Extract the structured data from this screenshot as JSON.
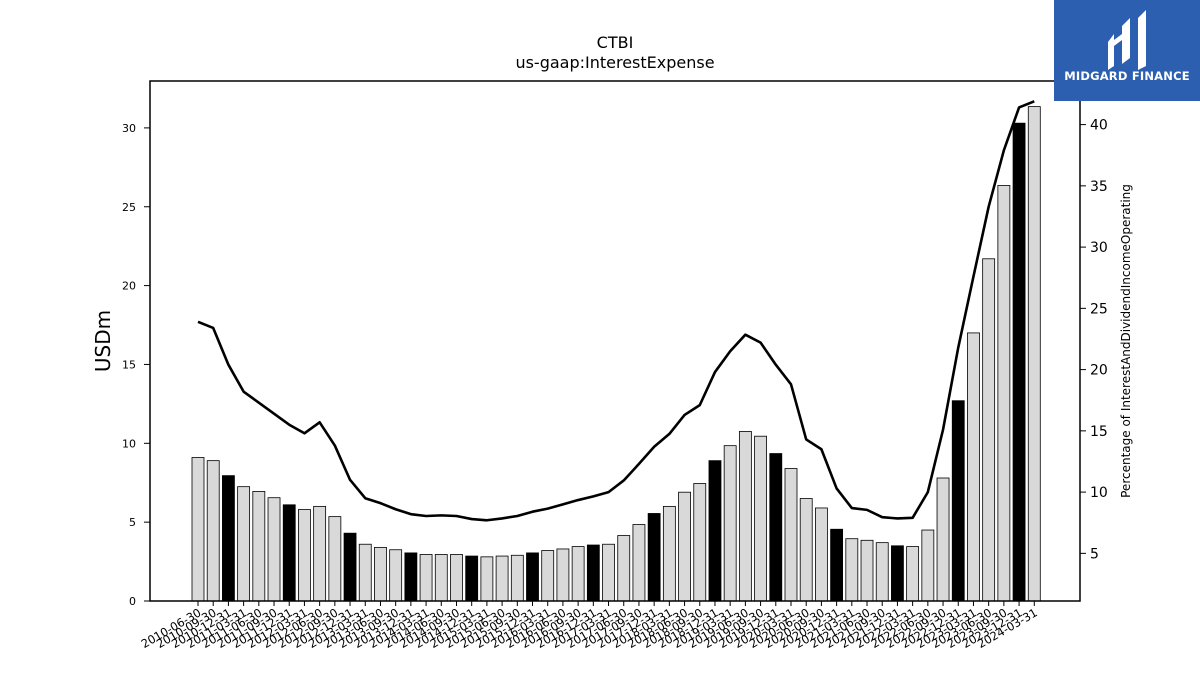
{
  "brand": {
    "name": "MIDGARD FINANCE",
    "background": "#2d5fb0"
  },
  "chart_data": {
    "type": "bar",
    "title": "CTBI",
    "subtitle": "us-gaap:InterestExpense",
    "ylabel": "USDm",
    "y2label": "Percentage of InterestAndDividendIncomeOperating",
    "ylim": [
      0,
      33
    ],
    "y2lim": [
      1.2,
      44
    ],
    "yticks": [
      0,
      5,
      10,
      15,
      20,
      25,
      30
    ],
    "y2ticks": [
      5,
      10,
      15,
      20,
      25,
      30,
      35,
      40
    ],
    "grid": false,
    "categories": [
      "2010-06-30",
      "2010-09-30",
      "2010-12-31",
      "2011-03-31",
      "2011-06-30",
      "2011-09-30",
      "2011-12-31",
      "2012-03-31",
      "2012-06-30",
      "2012-09-30",
      "2012-12-31",
      "2013-03-31",
      "2013-06-30",
      "2013-09-30",
      "2013-12-31",
      "2014-03-31",
      "2014-06-30",
      "2014-09-30",
      "2014-12-31",
      "2015-03-31",
      "2015-06-30",
      "2015-09-30",
      "2015-12-31",
      "2016-03-31",
      "2016-06-30",
      "2016-09-30",
      "2016-12-31",
      "2017-03-31",
      "2017-06-30",
      "2017-09-30",
      "2017-12-31",
      "2018-03-31",
      "2018-06-30",
      "2018-09-30",
      "2018-12-31",
      "2019-03-31",
      "2019-06-30",
      "2019-09-30",
      "2019-12-31",
      "2020-03-31",
      "2020-06-30",
      "2020-09-30",
      "2020-12-31",
      "2021-03-31",
      "2021-06-30",
      "2021-09-30",
      "2021-12-31",
      "2022-03-31",
      "2022-06-30",
      "2022-09-30",
      "2022-12-31",
      "2023-03-31",
      "2023-06-30",
      "2023-09-30",
      "2023-12-31",
      "2024-03-31"
    ],
    "series": [
      {
        "type": "bar",
        "axis": "left",
        "values": [
          9.1,
          8.9,
          7.95,
          7.25,
          6.95,
          6.55,
          6.1,
          5.8,
          6.0,
          5.35,
          4.3,
          3.6,
          3.4,
          3.25,
          3.05,
          2.95,
          2.95,
          2.95,
          2.85,
          2.8,
          2.85,
          2.9,
          3.05,
          3.2,
          3.3,
          3.45,
          3.55,
          3.6,
          4.15,
          4.85,
          5.55,
          6.0,
          6.9,
          7.45,
          8.9,
          9.85,
          10.75,
          10.45,
          9.35,
          8.4,
          6.5,
          5.9,
          4.55,
          3.95,
          3.85,
          3.7,
          3.5,
          3.45,
          4.5,
          7.8,
          12.7,
          17.0,
          21.7,
          26.35,
          30.3,
          31.35
        ],
        "highlight": [
          "2010-12-31",
          "2011-12-31",
          "2012-12-31",
          "2013-12-31",
          "2014-12-31",
          "2015-12-31",
          "2016-12-31",
          "2017-12-31",
          "2018-12-31",
          "2019-12-31",
          "2020-12-31",
          "2021-12-31",
          "2022-12-31",
          "2023-12-31"
        ],
        "color": "#d9d9d9",
        "highlight_color": "#000000"
      },
      {
        "type": "line",
        "axis": "right",
        "values": [
          23.9,
          23.4,
          20.4,
          18.2,
          17.3,
          16.4,
          15.5,
          14.8,
          15.7,
          13.8,
          11.0,
          9.5,
          9.1,
          8.6,
          8.2,
          8.05,
          8.1,
          8.05,
          7.8,
          7.7,
          7.85,
          8.05,
          8.4,
          8.65,
          9.0,
          9.35,
          9.65,
          10.0,
          10.95,
          12.3,
          13.7,
          14.75,
          16.3,
          17.1,
          19.8,
          21.5,
          22.85,
          22.2,
          20.4,
          18.8,
          14.3,
          13.5,
          10.3,
          8.7,
          8.55,
          7.95,
          7.85,
          7.9,
          10.0,
          15.1,
          21.8,
          27.6,
          33.3,
          37.9,
          41.4,
          41.9
        ],
        "color": "#000000"
      }
    ]
  }
}
